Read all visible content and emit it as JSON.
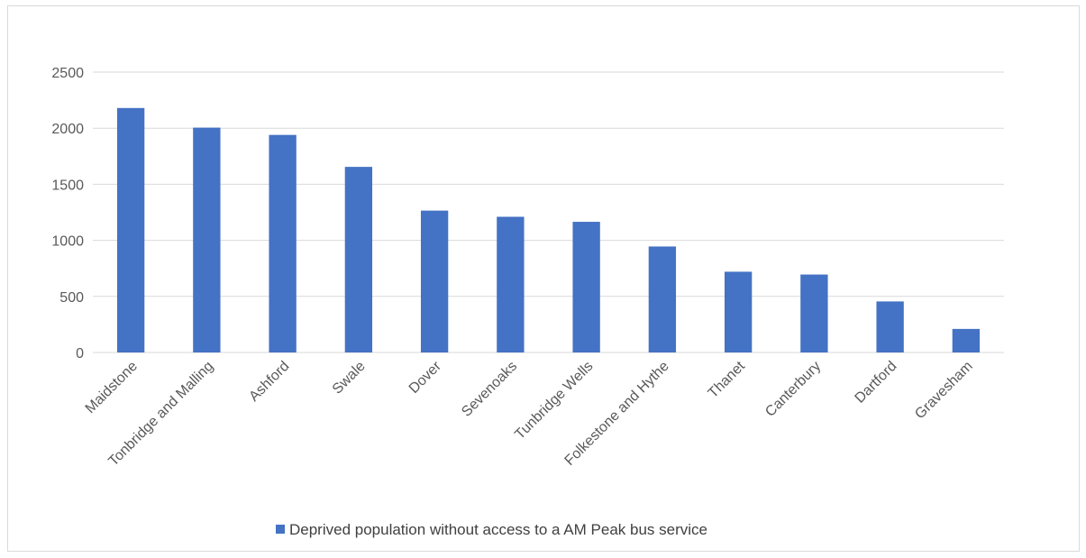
{
  "chart_data": {
    "type": "bar",
    "categories": [
      "Maidstone",
      "Tonbridge and Malling",
      "Ashford",
      "Swale",
      "Dover",
      "Sevenoaks",
      "Tunbridge Wells",
      "Folkestone and Hythe",
      "Thanet",
      "Canterbury",
      "Dartford",
      "Gravesham"
    ],
    "series": [
      {
        "name": "Deprived population without access to a AM Peak bus service",
        "color": "#4472c4",
        "values": [
          2180,
          2005,
          1940,
          1655,
          1265,
          1210,
          1165,
          945,
          720,
          695,
          455,
          210
        ]
      }
    ],
    "yticks": [
      "0",
      "500",
      "1000",
      "1500",
      "2000",
      "2500"
    ],
    "ylim": [
      0,
      2500
    ],
    "grid": true,
    "legend_position": "bottom",
    "title": "",
    "xlabel": "",
    "ylabel": ""
  }
}
